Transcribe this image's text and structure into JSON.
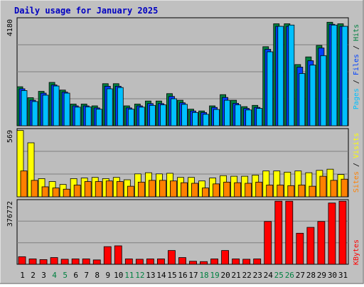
{
  "colors": {
    "frame_bg": "#c0c0c0",
    "panel_bg": "#bdbdbd",
    "title_color": "#0000c0",
    "hits": "#008040",
    "files": "#0040ff",
    "pages": "#00c0ff",
    "visits": "#ffff00",
    "sites": "#ff8000",
    "kbytes": "#ff0000",
    "weekend_day": "#008040",
    "weekday_day": "#000000"
  },
  "chart_data": [
    {
      "type": "bar",
      "title": "Daily usage for January 2025",
      "ymax_label": "4180",
      "ylim": [
        0,
        4180
      ],
      "grid": true,
      "right_label_parts": [
        {
          "text": "Pages",
          "color": "pages"
        },
        {
          "text": " / ",
          "color": "dark"
        },
        {
          "text": "Files",
          "color": "files"
        },
        {
          "text": " / ",
          "color": "dark"
        },
        {
          "text": "Hits",
          "color": "hits"
        }
      ],
      "categories": [
        "1",
        "2",
        "3",
        "4",
        "5",
        "6",
        "7",
        "8",
        "9",
        "10",
        "11",
        "12",
        "13",
        "14",
        "15",
        "16",
        "17",
        "18",
        "19",
        "20",
        "21",
        "22",
        "23",
        "24",
        "25",
        "26",
        "27",
        "28",
        "29",
        "30",
        "31"
      ],
      "series": [
        {
          "name": "Hits",
          "values": [
            1530,
            1100,
            1350,
            1700,
            1400,
            850,
            850,
            780,
            1650,
            1650,
            780,
            850,
            970,
            970,
            1260,
            1000,
            650,
            580,
            780,
            1220,
            1000,
            750,
            800,
            3100,
            4000,
            4000,
            2400,
            2700,
            3150,
            4060,
            4000
          ]
        },
        {
          "name": "Files",
          "values": [
            1450,
            1000,
            1280,
            1600,
            1320,
            780,
            780,
            700,
            1550,
            1550,
            700,
            780,
            870,
            870,
            1150,
            900,
            580,
            520,
            720,
            1110,
            880,
            680,
            720,
            3000,
            3900,
            3900,
            2300,
            2550,
            3050,
            3980,
            3900
          ]
        },
        {
          "name": "Pages",
          "values": [
            1380,
            950,
            1200,
            1560,
            1280,
            730,
            740,
            650,
            1450,
            1500,
            650,
            730,
            800,
            820,
            1060,
            840,
            520,
            450,
            640,
            1000,
            820,
            620,
            680,
            2900,
            3900,
            3950,
            2050,
            2380,
            2750,
            3950,
            3900
          ]
        }
      ]
    },
    {
      "type": "bar",
      "ymax_label": "569",
      "ylim": [
        0,
        569
      ],
      "grid": true,
      "right_label_parts": [
        {
          "text": "Sites",
          "color": "sites"
        },
        {
          "text": " / ",
          "color": "dark"
        },
        {
          "text": "Visits",
          "color": "visits"
        }
      ],
      "categories": [
        "1",
        "2",
        "3",
        "4",
        "5",
        "6",
        "7",
        "8",
        "9",
        "10",
        "11",
        "12",
        "13",
        "14",
        "15",
        "16",
        "17",
        "18",
        "19",
        "20",
        "21",
        "22",
        "23",
        "24",
        "25",
        "26",
        "27",
        "28",
        "29",
        "30",
        "31"
      ],
      "series": [
        {
          "name": "Visits",
          "values": [
            565,
            460,
            155,
            130,
            105,
            155,
            160,
            165,
            155,
            165,
            145,
            195,
            205,
            195,
            200,
            165,
            165,
            135,
            160,
            180,
            175,
            175,
            185,
            220,
            220,
            210,
            220,
            205,
            225,
            235,
            190
          ]
        },
        {
          "name": "Sites",
          "values": [
            220,
            140,
            85,
            75,
            65,
            100,
            130,
            130,
            135,
            130,
            90,
            125,
            140,
            140,
            135,
            120,
            115,
            75,
            110,
            125,
            120,
            115,
            125,
            100,
            100,
            95,
            100,
            90,
            175,
            140,
            150
          ]
        }
      ]
    },
    {
      "type": "bar",
      "ymax_label": "376772",
      "ylim": [
        0,
        376772
      ],
      "grid": true,
      "right_label_parts": [
        {
          "text": "KBytes",
          "color": "kbytes"
        }
      ],
      "categories": [
        "1",
        "2",
        "3",
        "4",
        "5",
        "6",
        "7",
        "8",
        "9",
        "10",
        "11",
        "12",
        "13",
        "14",
        "15",
        "16",
        "17",
        "18",
        "19",
        "20",
        "21",
        "22",
        "23",
        "24",
        "25",
        "26",
        "27",
        "28",
        "29",
        "30",
        "31"
      ],
      "series": [
        {
          "name": "KBytes",
          "values": [
            45000,
            32000,
            28000,
            40000,
            30000,
            32000,
            32000,
            26000,
            105000,
            110000,
            32000,
            30000,
            32000,
            32000,
            82000,
            40000,
            18000,
            16000,
            32000,
            82000,
            32000,
            30000,
            32000,
            255000,
            376000,
            376000,
            185000,
            220000,
            255000,
            365000,
            376000
          ]
        }
      ]
    }
  ],
  "weekend_days": [
    "4",
    "5",
    "11",
    "12",
    "18",
    "19",
    "25",
    "26"
  ]
}
